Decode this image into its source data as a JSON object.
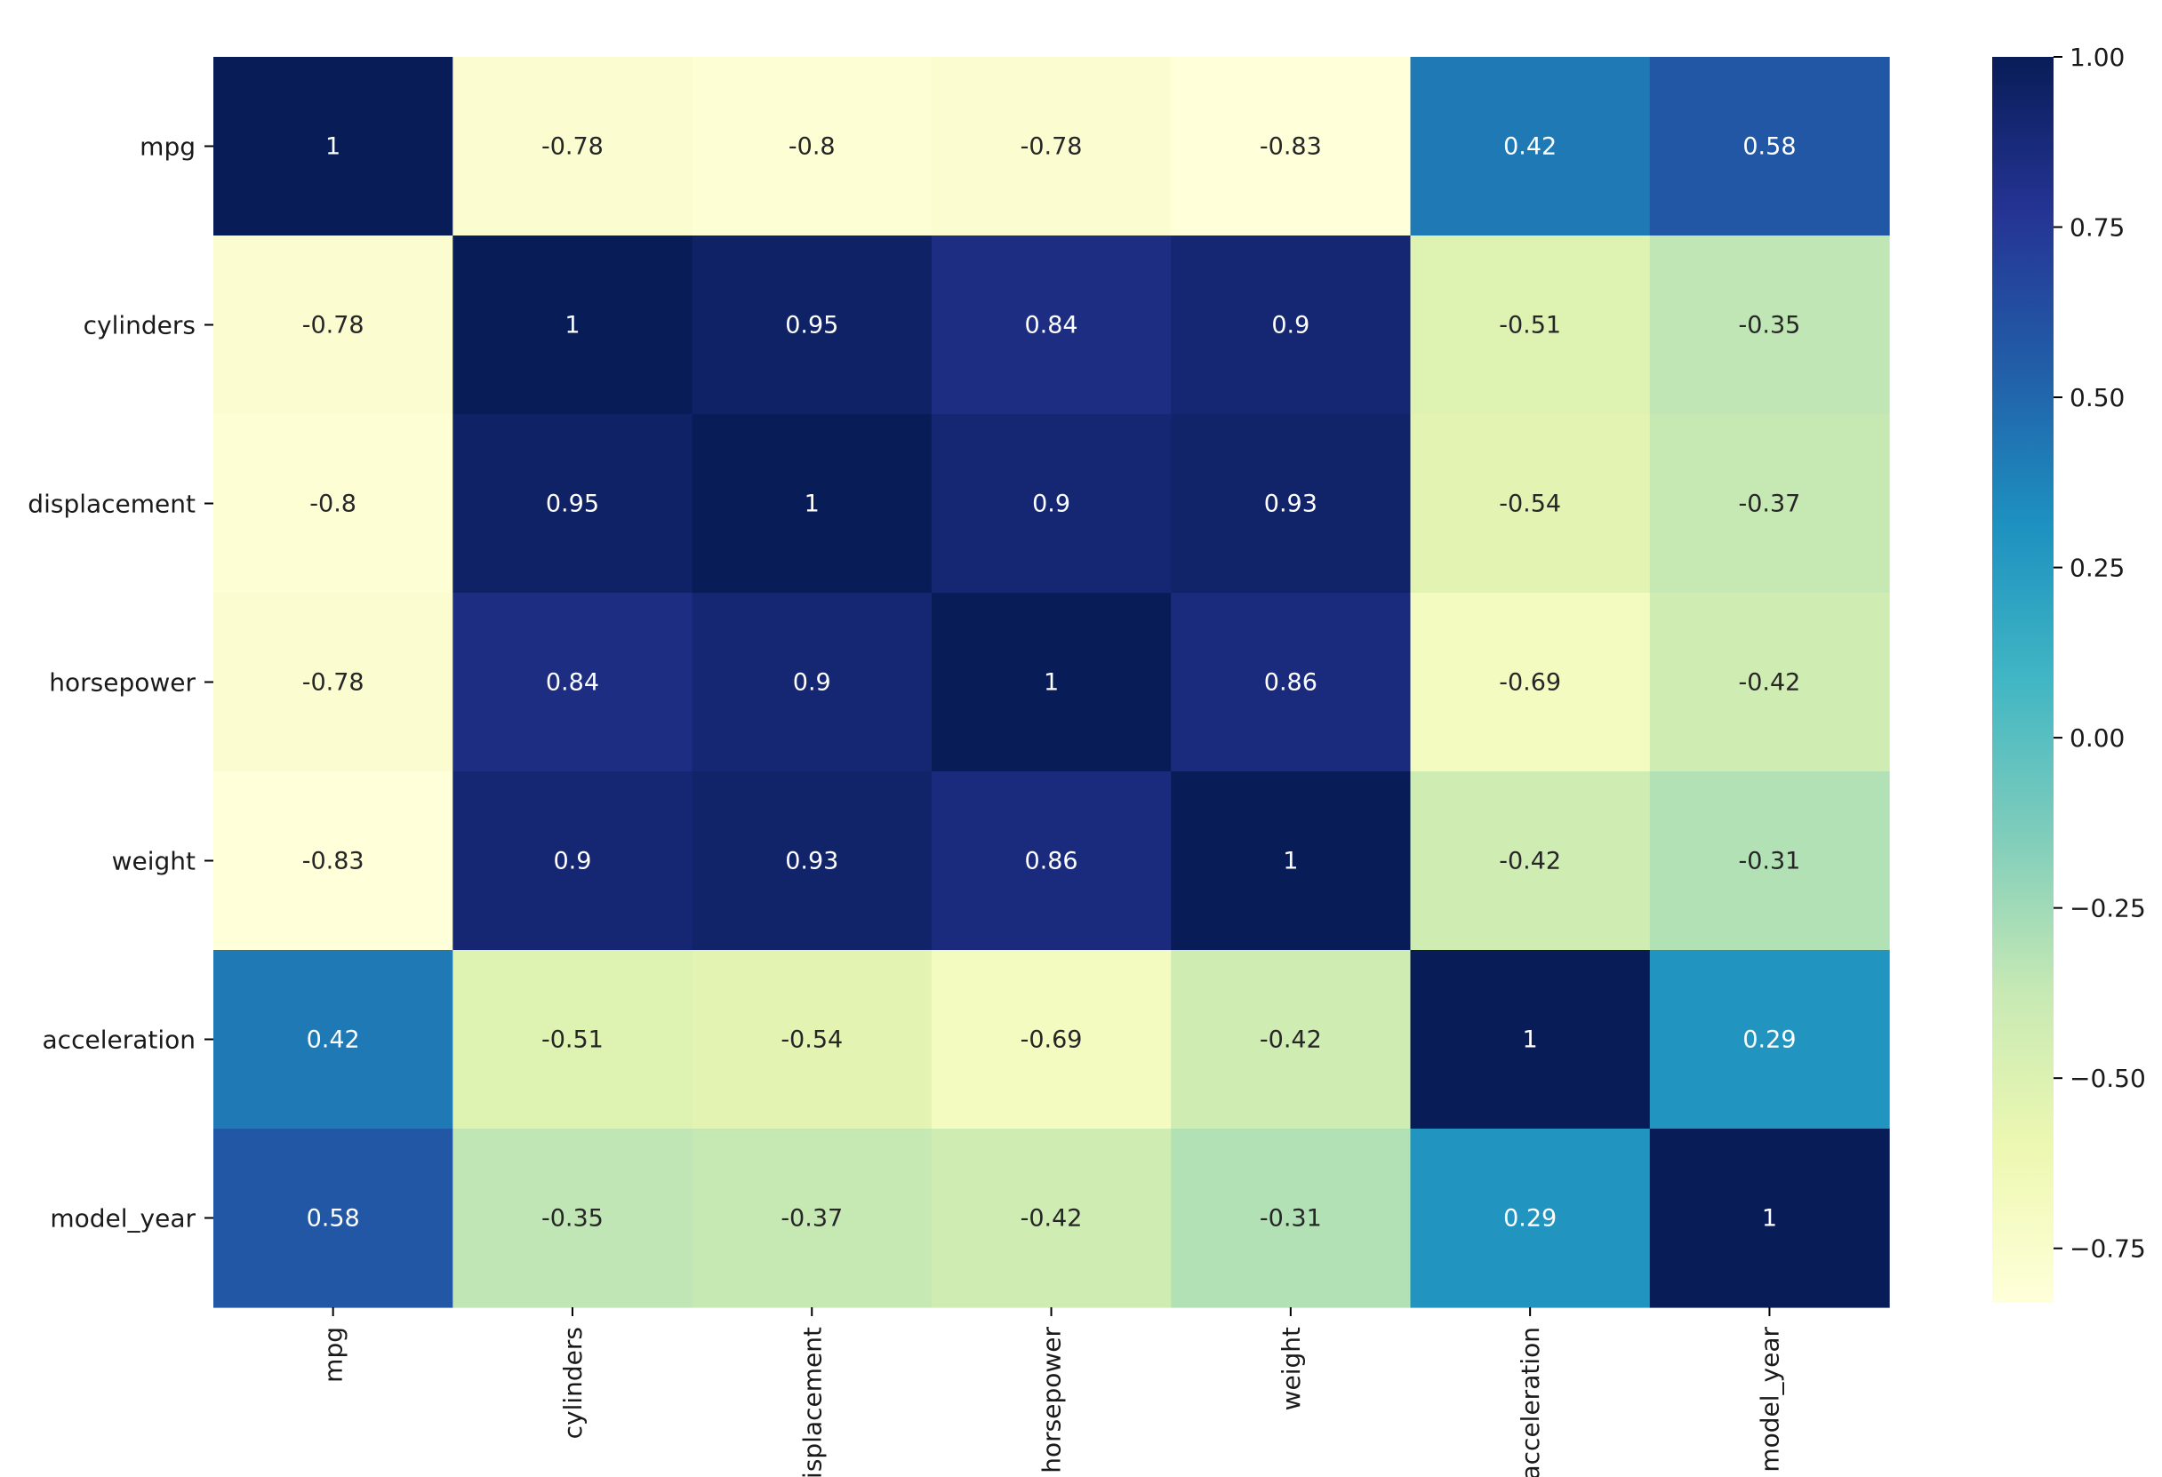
{
  "chart_data": {
    "type": "heatmap",
    "title": "",
    "xlabel": "",
    "ylabel": "",
    "row_labels": [
      "mpg",
      "cylinders",
      "displacement",
      "horsepower",
      "weight",
      "acceleration",
      "model_year"
    ],
    "col_labels": [
      "mpg",
      "cylinders",
      "displacement",
      "horsepower",
      "weight",
      "acceleration",
      "model_year"
    ],
    "x_tick_labels_visible": [
      "mpg",
      "cylinders",
      "isplacement",
      "horsepower",
      "weight",
      "acceleration",
      "model_year"
    ],
    "values": [
      [
        1.0,
        -0.78,
        -0.8,
        -0.78,
        -0.83,
        0.42,
        0.58
      ],
      [
        -0.78,
        1.0,
        0.95,
        0.84,
        0.9,
        -0.51,
        -0.35
      ],
      [
        -0.8,
        0.95,
        1.0,
        0.9,
        0.93,
        -0.54,
        -0.37
      ],
      [
        -0.78,
        0.84,
        0.9,
        1.0,
        0.86,
        -0.69,
        -0.42
      ],
      [
        -0.83,
        0.9,
        0.93,
        0.86,
        1.0,
        -0.42,
        -0.31
      ],
      [
        0.42,
        -0.51,
        -0.54,
        -0.69,
        -0.42,
        1.0,
        0.29
      ],
      [
        0.58,
        -0.35,
        -0.37,
        -0.42,
        -0.31,
        0.29,
        1.0
      ]
    ],
    "annotations": [
      [
        "1",
        "-0.78",
        "-0.8",
        "-0.78",
        "-0.83",
        "0.42",
        "0.58"
      ],
      [
        "-0.78",
        "1",
        "0.95",
        "0.84",
        "0.9",
        "-0.51",
        "-0.35"
      ],
      [
        "-0.8",
        "0.95",
        "1",
        "0.9",
        "0.93",
        "-0.54",
        "-0.37"
      ],
      [
        "-0.78",
        "0.84",
        "0.9",
        "1",
        "0.86",
        "-0.69",
        "-0.42"
      ],
      [
        "-0.83",
        "0.9",
        "0.93",
        "0.86",
        "1",
        "-0.42",
        "-0.31"
      ],
      [
        "0.42",
        "-0.51",
        "-0.54",
        "-0.69",
        "-0.42",
        "1",
        "0.29"
      ],
      [
        "0.58",
        "-0.35",
        "-0.37",
        "-0.42",
        "-0.31",
        "0.29",
        "1"
      ]
    ],
    "colormap": "YlGnBu",
    "colormap_stops": [
      "#ffffd9",
      "#edf8b1",
      "#c7e9b4",
      "#7fcdbb",
      "#41b6c4",
      "#1d91c0",
      "#225ea8",
      "#253494",
      "#081d58"
    ],
    "vmin": -0.83,
    "vmax": 1.0,
    "colorbar": {
      "ticks": [
        1.0,
        0.75,
        0.5,
        0.25,
        0.0,
        -0.25,
        -0.5,
        -0.75
      ],
      "tick_labels": [
        "1.00",
        "0.75",
        "0.50",
        "0.25",
        "0.00",
        "−0.25",
        "−0.50",
        "−0.75"
      ],
      "placement": "right"
    },
    "grid": false
  }
}
